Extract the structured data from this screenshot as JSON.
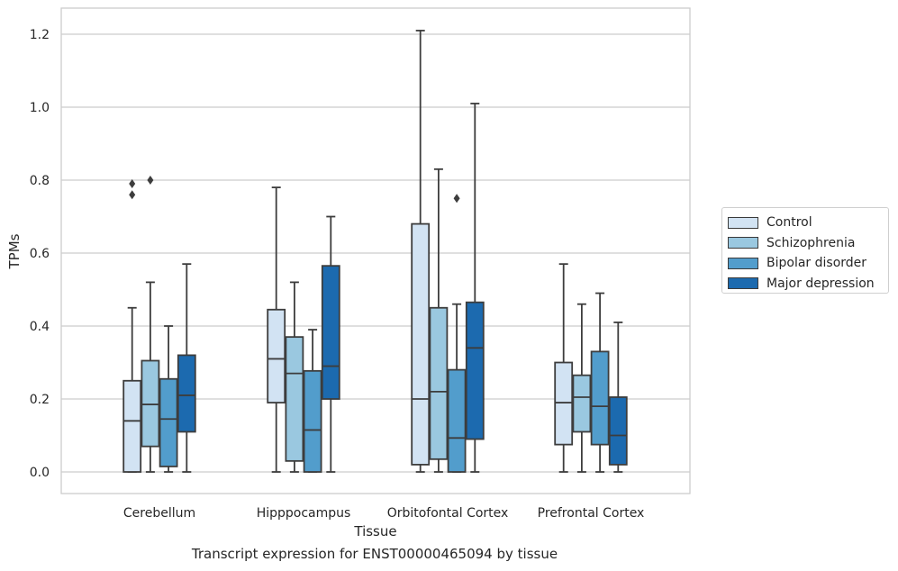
{
  "chart_data": {
    "type": "box",
    "title": "",
    "caption": "Transcript expression for ENST00000465094 by tissue",
    "xlabel": "Tissue",
    "ylabel": "TPMs",
    "ylim": [
      -0.06,
      1.27
    ],
    "yticks": [
      "0.0",
      "0.2",
      "0.4",
      "0.6",
      "0.8",
      "1.0",
      "1.2"
    ],
    "ytick_values": [
      0,
      0.2,
      0.4,
      0.6,
      0.8,
      1.0,
      1.2
    ],
    "grid": "horizontal",
    "legend_position": "outside-right",
    "categories": [
      "Cerebellum",
      "Hipppocampus",
      "Orbitofontal Cortex",
      "Prefrontal Cortex"
    ],
    "series": [
      {
        "name": "Control",
        "color": "#d2e3f3",
        "boxes": [
          {
            "whisker_low": 0.0,
            "q1": 0.0,
            "median": 0.14,
            "q3": 0.25,
            "whisker_high": 0.45,
            "outliers": [
              0.76,
              0.79
            ]
          },
          {
            "whisker_low": 0.0,
            "q1": 0.19,
            "median": 0.31,
            "q3": 0.445,
            "whisker_high": 0.78,
            "outliers": []
          },
          {
            "whisker_low": 0.0,
            "q1": 0.02,
            "median": 0.2,
            "q3": 0.68,
            "whisker_high": 1.21,
            "outliers": []
          },
          {
            "whisker_low": 0.0,
            "q1": 0.075,
            "median": 0.19,
            "q3": 0.3,
            "whisker_high": 0.57,
            "outliers": []
          }
        ]
      },
      {
        "name": "Schizophrenia",
        "color": "#9ac8e0",
        "boxes": [
          {
            "whisker_low": 0.0,
            "q1": 0.07,
            "median": 0.185,
            "q3": 0.305,
            "whisker_high": 0.52,
            "outliers": [
              0.8
            ]
          },
          {
            "whisker_low": 0.0,
            "q1": 0.03,
            "median": 0.27,
            "q3": 0.37,
            "whisker_high": 0.52,
            "outliers": []
          },
          {
            "whisker_low": 0.0,
            "q1": 0.035,
            "median": 0.22,
            "q3": 0.45,
            "whisker_high": 0.83,
            "outliers": []
          },
          {
            "whisker_low": 0.0,
            "q1": 0.11,
            "median": 0.205,
            "q3": 0.265,
            "whisker_high": 0.46,
            "outliers": []
          }
        ]
      },
      {
        "name": "Bipolar disorder",
        "color": "#529dcc",
        "boxes": [
          {
            "whisker_low": 0.0,
            "q1": 0.015,
            "median": 0.145,
            "q3": 0.255,
            "whisker_high": 0.4,
            "outliers": []
          },
          {
            "whisker_low": 0.0,
            "q1": 0.0,
            "median": 0.115,
            "q3": 0.277,
            "whisker_high": 0.39,
            "outliers": []
          },
          {
            "whisker_low": 0.0,
            "q1": 0.0,
            "median": 0.093,
            "q3": 0.28,
            "whisker_high": 0.46,
            "outliers": [
              0.75
            ]
          },
          {
            "whisker_low": 0.0,
            "q1": 0.075,
            "median": 0.18,
            "q3": 0.33,
            "whisker_high": 0.49,
            "outliers": []
          }
        ]
      },
      {
        "name": "Major depression",
        "color": "#1c6aaf",
        "boxes": [
          {
            "whisker_low": 0.0,
            "q1": 0.11,
            "median": 0.21,
            "q3": 0.32,
            "whisker_high": 0.57,
            "outliers": []
          },
          {
            "whisker_low": 0.0,
            "q1": 0.2,
            "median": 0.29,
            "q3": 0.565,
            "whisker_high": 0.7,
            "outliers": []
          },
          {
            "whisker_low": 0.0,
            "q1": 0.09,
            "median": 0.34,
            "q3": 0.465,
            "whisker_high": 1.01,
            "outliers": []
          },
          {
            "whisker_low": 0.0,
            "q1": 0.02,
            "median": 0.1,
            "q3": 0.205,
            "whisker_high": 0.41,
            "outliers": []
          }
        ]
      }
    ]
  }
}
